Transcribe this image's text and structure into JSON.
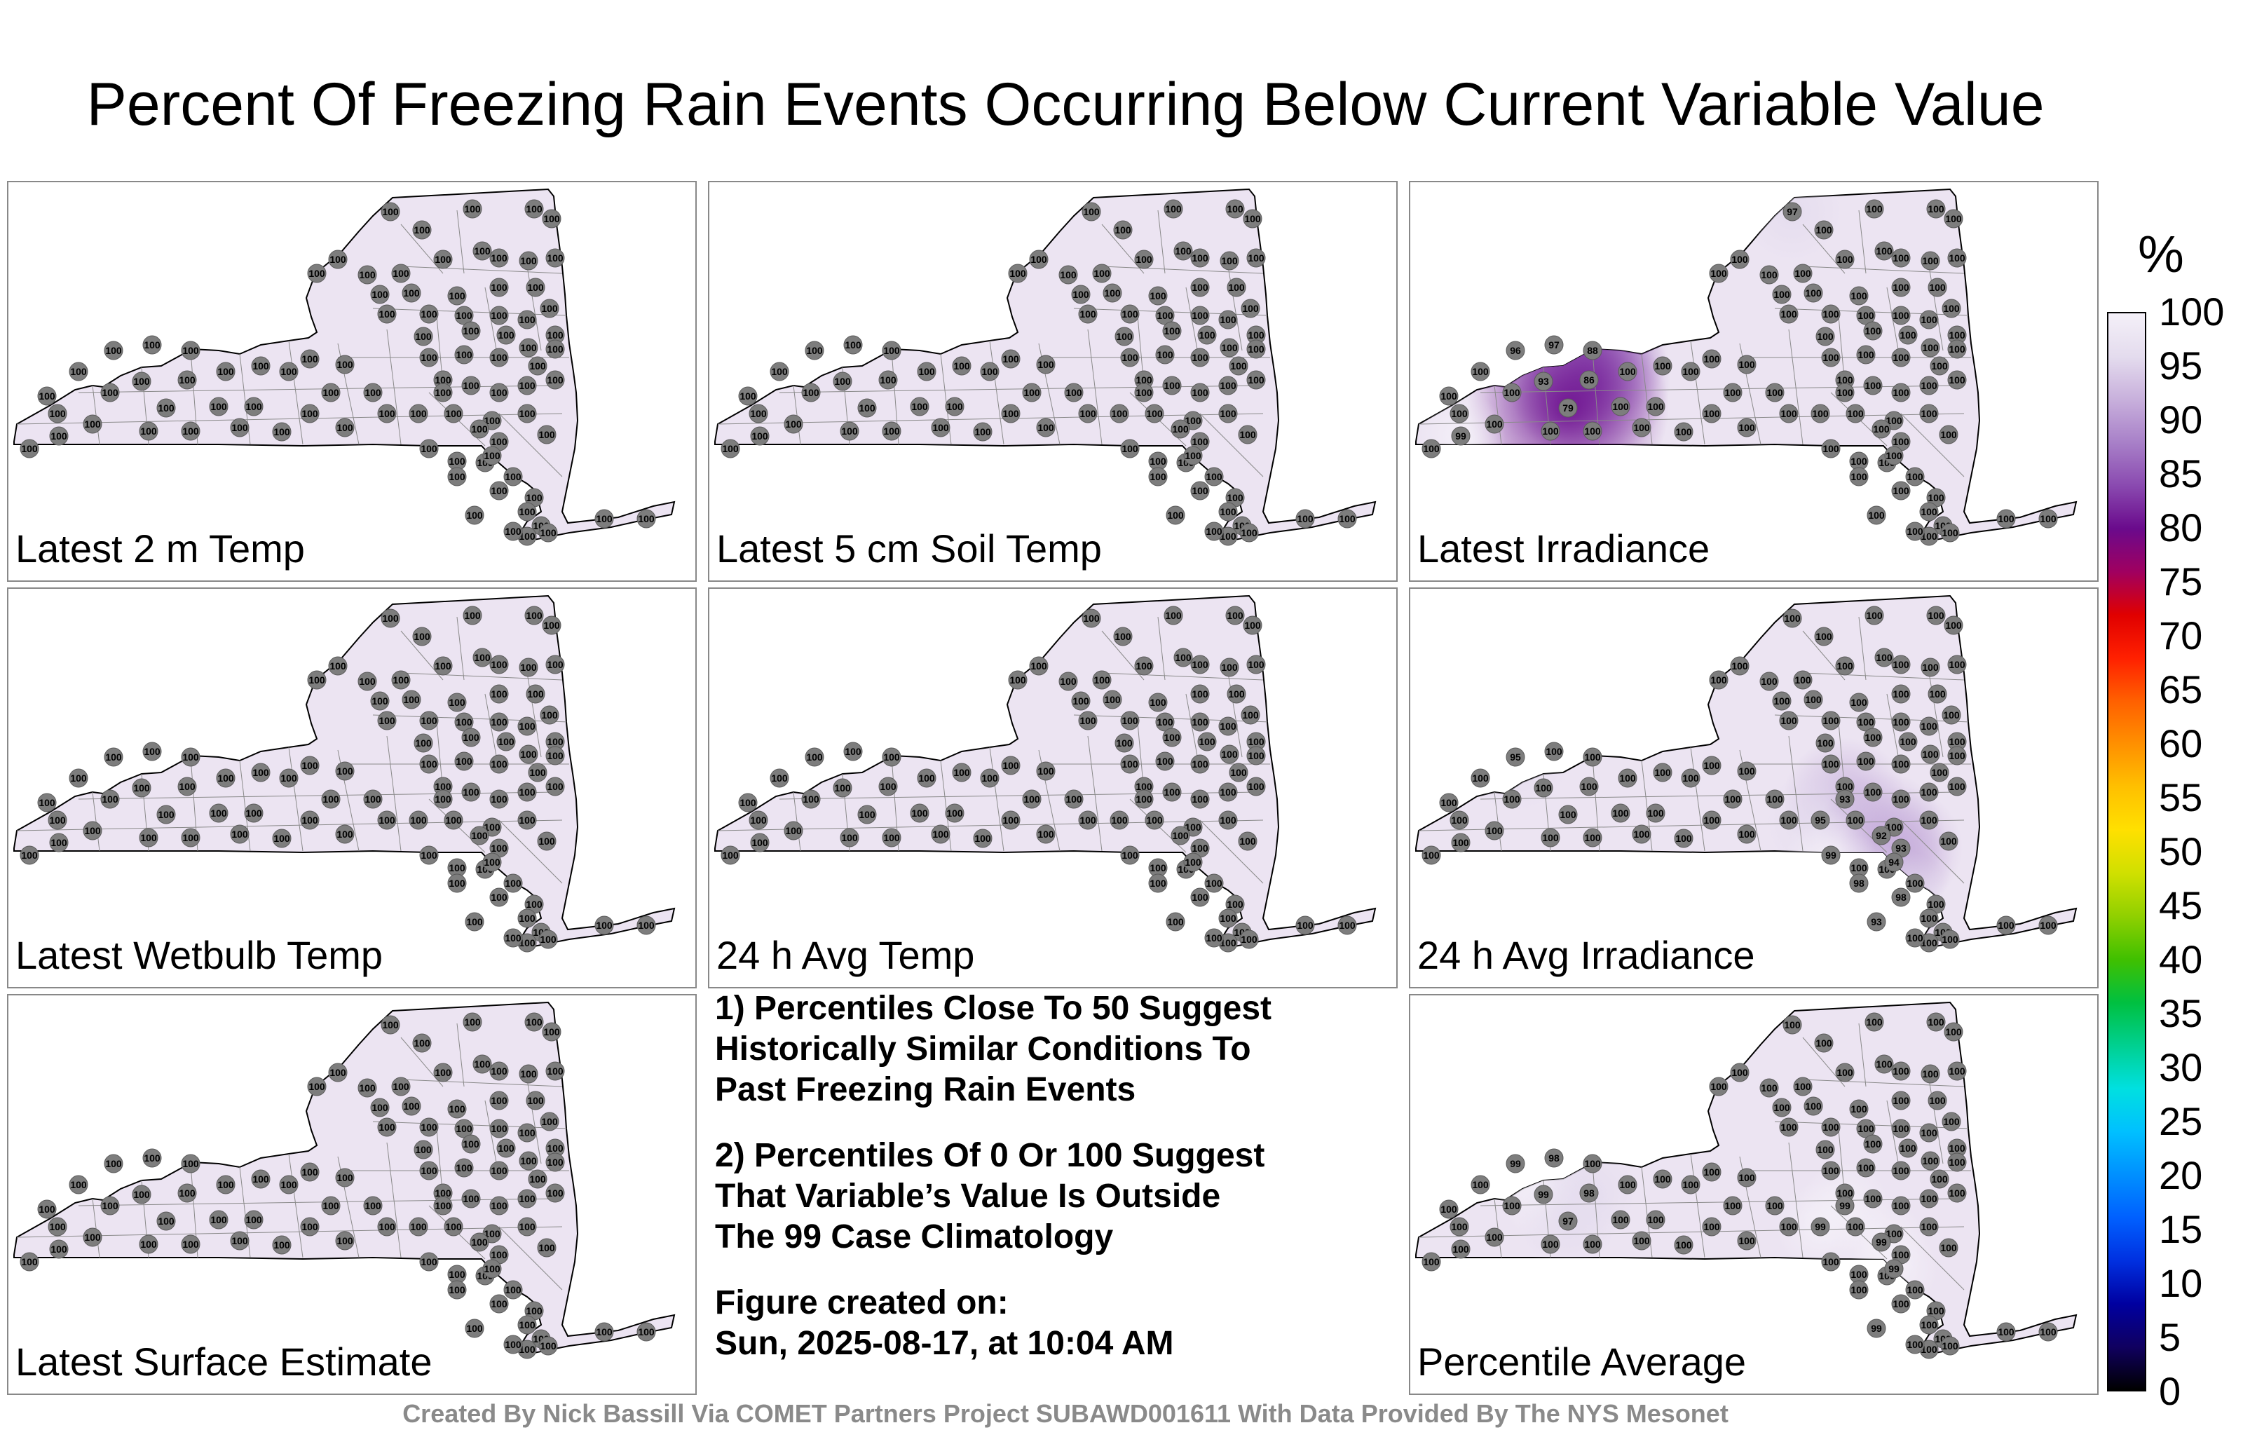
{
  "title": "Percent Of Freezing Rain Events Occurring Below Current Variable Value",
  "panels": [
    {
      "label": "Latest 2 m Temp",
      "anomalies": []
    },
    {
      "label": "Latest 5 cm Soil Temp",
      "anomalies": []
    },
    {
      "label": "Latest Irradiance",
      "anomalies": [
        {
          "value": 97,
          "station": 0
        },
        {
          "value": 96,
          "station": 50
        },
        {
          "value": 97,
          "station": 51
        },
        {
          "value": 88,
          "station": 52
        },
        {
          "value": 93,
          "station": 53
        },
        {
          "value": 86,
          "station": 54
        },
        {
          "value": 79,
          "station": 55
        },
        {
          "value": 99,
          "station": 56
        }
      ]
    },
    {
      "label": "Latest Wetbulb Temp",
      "anomalies": []
    },
    {
      "label": "24 h Avg Temp",
      "anomalies": []
    },
    {
      "label": "24 h Avg Irradiance",
      "anomalies": [
        {
          "value": 95,
          "station": 50
        },
        {
          "value": 93,
          "station": 70
        },
        {
          "value": 95,
          "station": 71
        },
        {
          "value": 92,
          "station": 72
        },
        {
          "value": 93,
          "station": 73
        },
        {
          "value": 94,
          "station": 74
        },
        {
          "value": 98,
          "station": 75
        },
        {
          "value": 98,
          "station": 76
        },
        {
          "value": 93,
          "station": 77
        },
        {
          "value": 99,
          "station": 78
        }
      ]
    },
    {
      "label": "Latest Surface Estimate",
      "anomalies": []
    },
    {
      "label": "Percentile Average",
      "anomalies": [
        {
          "value": 99,
          "station": 50
        },
        {
          "value": 98,
          "station": 51
        },
        {
          "value": 99,
          "station": 53
        },
        {
          "value": 98,
          "station": 54
        },
        {
          "value": 97,
          "station": 55
        },
        {
          "value": 99,
          "station": 70
        },
        {
          "value": 99,
          "station": 71
        },
        {
          "value": 99,
          "station": 72
        },
        {
          "value": 99,
          "station": 74
        },
        {
          "value": 99,
          "station": 77
        }
      ]
    }
  ],
  "default_station_value": 100,
  "notes": [
    "1) Percentiles Close To 50 Suggest\nHistorically Similar Conditions To\nPast Freezing Rain Events",
    "2) Percentiles Of 0 Or 100 Suggest\nThat Variable’s Value Is Outside\nThe 99 Case Climatology",
    "Figure created on:\nSun, 2025-08-17, at 10:04 AM"
  ],
  "colorbar": {
    "unit": "%",
    "ticks": [
      "100",
      "95",
      "90",
      "85",
      "80",
      "75",
      "70",
      "65",
      "60",
      "55",
      "50",
      "45",
      "40",
      "35",
      "30",
      "25",
      "20",
      "15",
      "10",
      "5",
      "0"
    ],
    "colors": [
      "#000000",
      "#100060",
      "#0000a0",
      "#0030e0",
      "#0060ff",
      "#0090ff",
      "#00c0ff",
      "#00e0e0",
      "#00d090",
      "#00c040",
      "#40c000",
      "#90d000",
      "#d0e000",
      "#ffe000",
      "#ffc000",
      "#ff9000",
      "#ff6000",
      "#ff2000",
      "#e00000",
      "#a00060",
      "#6a0a8c",
      "#8a4ab0",
      "#a880c8",
      "#c8b0dc",
      "#e4dcee",
      "#f4f0f8"
    ]
  },
  "credit": "Created By Nick Bassill Via COMET Partners Project SUBAWD001611 With Data Provided By The NYS Mesonet"
}
